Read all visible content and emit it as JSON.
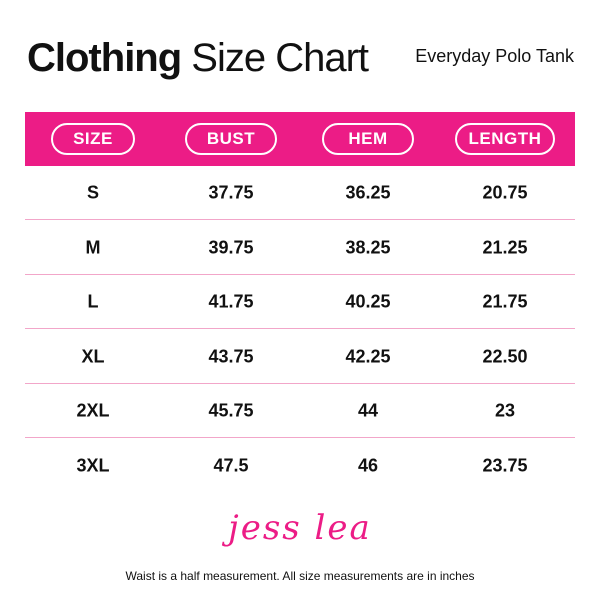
{
  "header": {
    "title_bold": "Clothing",
    "title_rest": "Size Chart",
    "product": "Everyday Polo Tank"
  },
  "table": {
    "columns": [
      "SIZE",
      "BUST",
      "HEM",
      "LENGTH"
    ],
    "rows": [
      [
        "S",
        "37.75",
        "36.25",
        "20.75"
      ],
      [
        "M",
        "39.75",
        "38.25",
        "21.25"
      ],
      [
        "L",
        "41.75",
        "40.25",
        "21.75"
      ],
      [
        "XL",
        "43.75",
        "42.25",
        "22.50"
      ],
      [
        "2XL",
        "45.75",
        "44",
        "23"
      ],
      [
        "3XL",
        "47.5",
        "46",
        "23.75"
      ]
    ]
  },
  "brand": "jess lea",
  "footer": {
    "note": "Waist is a half measurement. All size measurements are in inches"
  }
}
